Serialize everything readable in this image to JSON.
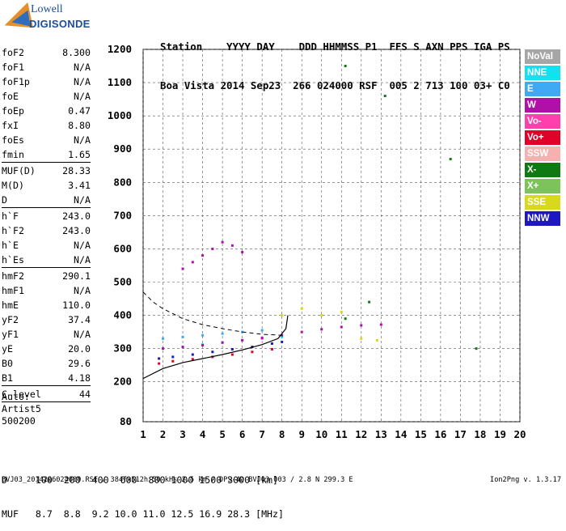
{
  "logo": {
    "company": "Lowell",
    "product": "DIGISONDE"
  },
  "header": {
    "line1": "Station    YYYY DAY    DDD HHMMSS P1  FFS S AXN PPS IGA PS",
    "line2": "Boa Vista 2014 Sep23  266 024000 RSF  005 2 713 100 03+ C0"
  },
  "params": [
    [
      {
        "name": "foF2",
        "value": "8.300"
      },
      {
        "name": "foF1",
        "value": "N/A"
      },
      {
        "name": "foF1p",
        "value": "N/A"
      },
      {
        "name": "foE",
        "value": "N/A"
      },
      {
        "name": "foEp",
        "value": "0.47"
      },
      {
        "name": "fxI",
        "value": "8.80"
      },
      {
        "name": "foEs",
        "value": "N/A"
      },
      {
        "name": "fmin",
        "value": "1.65"
      }
    ],
    [
      {
        "name": "MUF(D)",
        "value": "28.33"
      },
      {
        "name": "M(D)",
        "value": "3.41"
      },
      {
        "name": "D",
        "value": "N/A"
      }
    ],
    [
      {
        "name": "h`F",
        "value": "243.0"
      },
      {
        "name": "h`F2",
        "value": "243.0"
      },
      {
        "name": "h`E",
        "value": "N/A"
      },
      {
        "name": "h`Es",
        "value": "N/A"
      }
    ],
    [
      {
        "name": "hmF2",
        "value": "290.1"
      },
      {
        "name": "hmF1",
        "value": "N/A"
      },
      {
        "name": "hmE",
        "value": "110.0"
      },
      {
        "name": "yF2",
        "value": "37.4"
      },
      {
        "name": "yF1",
        "value": "N/A"
      },
      {
        "name": "yE",
        "value": "20.0"
      },
      {
        "name": "B0",
        "value": "29.6"
      },
      {
        "name": "B1",
        "value": "4.18"
      }
    ],
    [
      {
        "name": "C-level",
        "value": "44"
      }
    ]
  ],
  "autoscale": {
    "line1": "Auto:",
    "line2": "Artist5",
    "line3": "500200"
  },
  "legend": [
    {
      "label": "NoVal",
      "color": "#a6a6a6"
    },
    {
      "label": "NNE",
      "color": "#14e0f0"
    },
    {
      "label": "E",
      "color": "#3fa9f5"
    },
    {
      "label": "W",
      "color": "#b00fa8"
    },
    {
      "label": "Vo-",
      "color": "#ff3fae"
    },
    {
      "label": "Vo+",
      "color": "#e00028"
    },
    {
      "label": "SSW",
      "color": "#f7b0b0"
    },
    {
      "label": "X-",
      "color": "#0f7a12"
    },
    {
      "label": "X+",
      "color": "#7dc35c"
    },
    {
      "label": "SSE",
      "color": "#d8d81e"
    },
    {
      "label": "NNW",
      "color": "#1d17c4"
    }
  ],
  "chart_data": {
    "type": "scatter",
    "xlabel": "",
    "ylabel": "",
    "xlim": [
      1,
      20
    ],
    "ylim": [
      80,
      1200
    ],
    "xticks": [
      "1",
      "2",
      "3",
      "4",
      "5",
      "6",
      "7",
      "8",
      "9",
      "10",
      "11",
      "12",
      "13",
      "14",
      "15",
      "16",
      "17",
      "18",
      "19",
      "20"
    ],
    "yticks": [
      {
        "value": 1200,
        "label": "1200"
      },
      {
        "value": 1100,
        "label": "1100"
      },
      {
        "value": 1000,
        "label": "1000"
      },
      {
        "value": 900,
        "label": "900"
      },
      {
        "value": 800,
        "label": "800"
      },
      {
        "value": 700,
        "label": "700"
      },
      {
        "value": 600,
        "label": "600"
      },
      {
        "value": 500,
        "label": "500"
      },
      {
        "value": 400,
        "label": "400"
      },
      {
        "value": 300,
        "label": "300"
      },
      {
        "value": 200,
        "label": "200"
      },
      {
        "value": 80,
        "label": "80"
      }
    ],
    "grid": true,
    "series": [
      {
        "color": "#1d17c4",
        "x": [
          1.8,
          2.5,
          3.5,
          4.5,
          5.5,
          6.5,
          7.5,
          8.0
        ],
        "y": [
          270,
          275,
          282,
          290,
          298,
          305,
          315,
          320
        ]
      },
      {
        "color": "#14e0f0",
        "x": [
          2.0,
          3.0,
          4.0,
          5.0,
          6.0,
          7.0,
          8.0
        ],
        "y": [
          300,
          305,
          312,
          318,
          325,
          330,
          335
        ]
      },
      {
        "color": "#3fa9f5",
        "x": [
          2.0,
          3.0,
          4.0,
          5.0,
          6.0,
          7.0
        ],
        "y": [
          330,
          335,
          340,
          345,
          350,
          355
        ]
      },
      {
        "color": "#b00fa8",
        "x": [
          2.0,
          3.0,
          4.0,
          5.0,
          6.0,
          7.0,
          8.0,
          9.0,
          10.0,
          11.0,
          12.0,
          13.0
        ],
        "y": [
          300,
          305,
          310,
          318,
          325,
          332,
          340,
          350,
          358,
          365,
          370,
          372
        ]
      },
      {
        "color": "#e00028",
        "x": [
          1.8,
          2.5,
          3.5,
          4.5,
          5.5,
          6.5,
          7.5
        ],
        "y": [
          255,
          262,
          268,
          275,
          282,
          290,
          298
        ]
      },
      {
        "color": "#d8d81e",
        "x": [
          8.0,
          9.0,
          10.0,
          11.0,
          12.0,
          12.8
        ],
        "y": [
          400,
          420,
          400,
          410,
          330,
          325
        ]
      },
      {
        "color": "#0f7a12",
        "x": [
          11.2,
          11.2,
          12.4,
          13.2,
          16.5,
          17.8
        ],
        "y": [
          1150,
          390,
          440,
          1060,
          870,
          300
        ]
      },
      {
        "color": "#b00fa8",
        "x": [
          3.0,
          3.5,
          4.0,
          4.5,
          5.0,
          5.5,
          6.0
        ],
        "y": [
          540,
          560,
          580,
          600,
          620,
          610,
          590
        ]
      }
    ],
    "trace_solid": {
      "x": [
        1.0,
        2.0,
        3.0,
        4.0,
        5.0,
        6.0,
        7.0,
        7.8,
        8.2,
        8.3
      ],
      "y": [
        210,
        240,
        258,
        270,
        282,
        296,
        312,
        330,
        360,
        400
      ]
    },
    "trace_dashed": {
      "x": [
        1.0,
        1.5,
        2.0,
        2.5,
        3.0,
        4.0,
        5.0,
        6.0,
        7.0,
        8.0
      ],
      "y": [
        470,
        440,
        420,
        405,
        390,
        372,
        360,
        350,
        343,
        340
      ]
    }
  },
  "footer": {
    "line1": "D     100  200  400  600  800 1000 1500 3000 [km]",
    "line2": "MUF   8.7  8.8  9.2 10.0 11.0 12.5 16.9 28.3 [MHz]"
  },
  "bottom_left": "BVJ03_2014266024000.RSF / 384fx512h 50 kHs 2.5 km / DPS-4D BVJ03 003 / 2.8 N 299.3 E",
  "bottom_right": "Ion2Png v. 1.3.17"
}
